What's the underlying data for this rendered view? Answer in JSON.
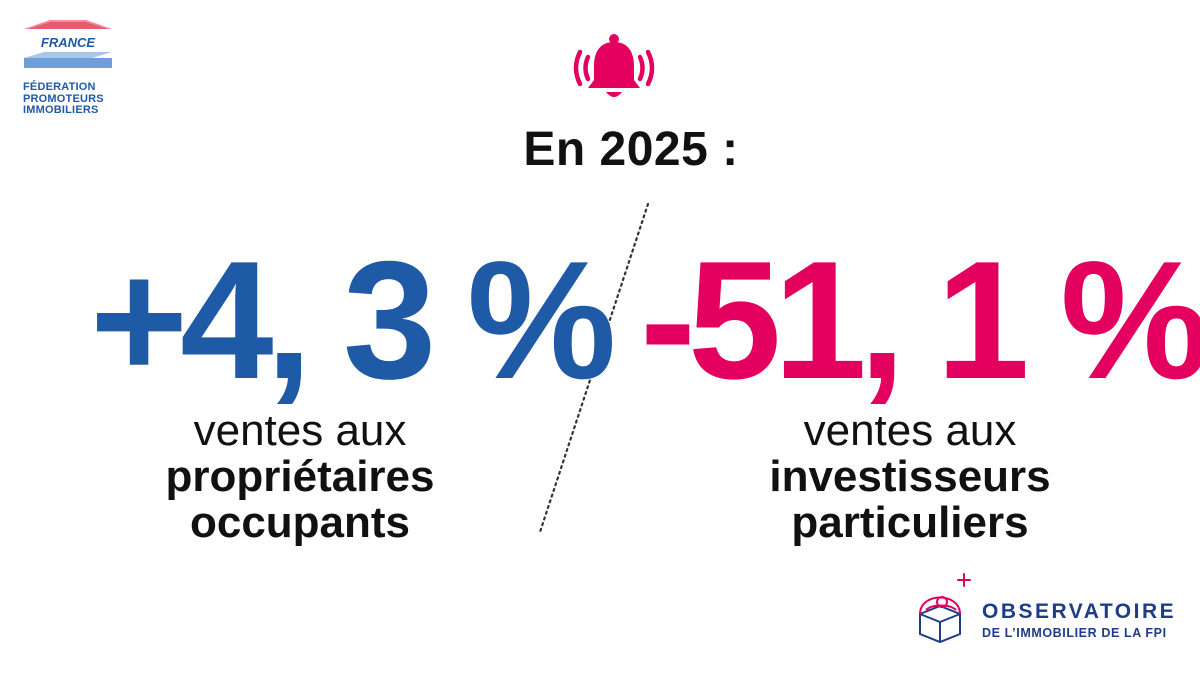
{
  "logo_fpi": {
    "country": "FRANCE",
    "lines": [
      "FÉDERATION",
      "PROMOTEURS",
      "IMMOBILIERS"
    ]
  },
  "alert": {
    "icon": "ringing-bell-icon",
    "color": "#e3005f"
  },
  "headline": "En 2025 :",
  "stats": {
    "left": {
      "value": "+4, 3 %",
      "color": "#1f5aa6",
      "caption_light": "ventes aux",
      "caption_bold_1": "propriétaires",
      "caption_bold_2": "occupants"
    },
    "right": {
      "value": "-51, 1 %",
      "color": "#e3005f",
      "caption_light": "ventes aux",
      "caption_bold_1": "investisseurs",
      "caption_bold_2": "particuliers"
    }
  },
  "logo_observatoire": {
    "title": "OBSERVATOIRE",
    "subtitle": "DE L’IMMOBILIER DE LA FPI"
  }
}
